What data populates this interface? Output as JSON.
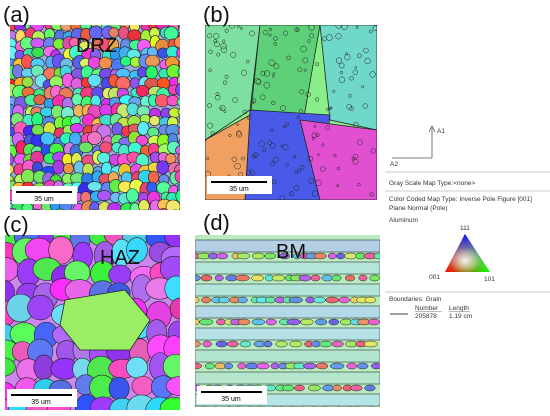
{
  "panels": [
    {
      "label": "(a)",
      "title": "DRZ",
      "scale_bar": "35 um"
    },
    {
      "label": "(b)",
      "scale_bar": "35 um"
    },
    {
      "label": "(c)",
      "title": "HAZ",
      "scale_bar": "35 um"
    },
    {
      "label": "(d)",
      "title": "BM",
      "scale_bar": "35 um"
    }
  ],
  "legend": {
    "axis_1": "A1",
    "axis_2": "A2",
    "gray_scale": "Gray Scale Map Type:<none>",
    "color_coded": "Color Coded Map Type: Inverse Pole Figure [001]",
    "plane_normal": "Plane Normal (Pole)",
    "material": "Aluminum",
    "ipf_corners": [
      "111",
      "001",
      "101"
    ],
    "boundaries": "Boundaries: Grain",
    "table": {
      "headers": [
        "Number",
        "Length"
      ],
      "row": [
        "205878",
        "1.19 cm"
      ]
    }
  }
}
